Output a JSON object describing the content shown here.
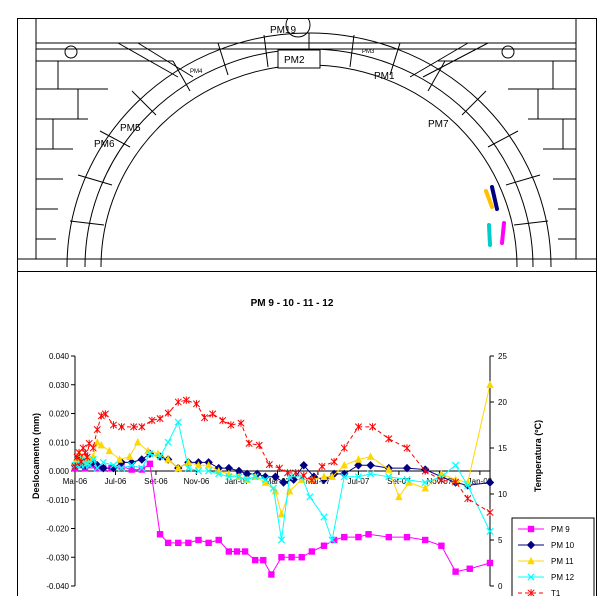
{
  "drawing": {
    "labels": [
      "PM19",
      "PM2",
      "PM1",
      "PM3",
      "PM4",
      "PM5",
      "PM6",
      "PM7"
    ]
  },
  "chart_data": {
    "type": "line",
    "title": "PM 9 - 10 - 11 - 12",
    "ylabel": "Deslocamento (mm)",
    "y2label": "Temperatura (ºC)",
    "ylim": [
      -0.04,
      0.04
    ],
    "y2lim": [
      0,
      25
    ],
    "yticks": [
      "0.040",
      "0.030",
      "0.020",
      "0.010",
      "0.000",
      "-0.010",
      "-0.020",
      "-0.030",
      "-0.040"
    ],
    "y2ticks": [
      "25",
      "20",
      "15",
      "10",
      "5",
      "0"
    ],
    "xlim": [
      0,
      20.5
    ],
    "xticks": [
      {
        "label": "Mai-06",
        "x": 0
      },
      {
        "label": "Jul-06",
        "x": 2
      },
      {
        "label": "Set-06",
        "x": 4
      },
      {
        "label": "Nov-06",
        "x": 6
      },
      {
        "label": "Jan-07",
        "x": 8
      },
      {
        "label": "Mar-07",
        "x": 10
      },
      {
        "label": "Mai-07",
        "x": 12
      },
      {
        "label": "Jul-07",
        "x": 14
      },
      {
        "label": "Set-07",
        "x": 16
      },
      {
        "label": "Nov-07",
        "x": 18
      },
      {
        "label": "Jan-08",
        "x": 20
      }
    ],
    "grid": false,
    "legend_position": "bottom-right",
    "series": [
      {
        "name": "PM 9",
        "axis": "left",
        "color": "#ff00ff",
        "marker": "square",
        "dash": "",
        "points": [
          [
            0.0,
            0.001
          ],
          [
            0.1,
            0.002
          ],
          [
            0.2,
            0.004
          ],
          [
            0.3,
            0.002
          ],
          [
            0.4,
            0.003
          ],
          [
            0.5,
            0.001
          ],
          [
            0.6,
            0.002
          ],
          [
            0.7,
            0.002
          ],
          [
            0.9,
            0.002
          ],
          [
            1.1,
            0.001
          ],
          [
            1.4,
            0.001
          ],
          [
            1.8,
            0.001
          ],
          [
            2.3,
            0.0015
          ],
          [
            2.8,
            0.0005
          ],
          [
            3.3,
            0.0005
          ],
          [
            3.7,
            0.0025
          ],
          [
            4.2,
            -0.022
          ],
          [
            4.6,
            -0.025
          ],
          [
            5.1,
            -0.025
          ],
          [
            5.6,
            -0.025
          ],
          [
            6.1,
            -0.024
          ],
          [
            6.6,
            -0.025
          ],
          [
            7.1,
            -0.024
          ],
          [
            7.6,
            -0.028
          ],
          [
            8.0,
            -0.028
          ],
          [
            8.4,
            -0.028
          ],
          [
            8.9,
            -0.031
          ],
          [
            9.3,
            -0.031
          ],
          [
            9.7,
            -0.036
          ],
          [
            10.2,
            -0.03
          ],
          [
            10.7,
            -0.03
          ],
          [
            11.2,
            -0.03
          ],
          [
            11.7,
            -0.028
          ],
          [
            12.3,
            -0.026
          ],
          [
            12.8,
            -0.024
          ],
          [
            13.3,
            -0.023
          ],
          [
            14.0,
            -0.023
          ],
          [
            14.5,
            -0.022
          ],
          [
            15.5,
            -0.023
          ],
          [
            16.4,
            -0.023
          ],
          [
            17.3,
            -0.024
          ],
          [
            18.1,
            -0.026
          ],
          [
            18.8,
            -0.035
          ],
          [
            19.5,
            -0.034
          ],
          [
            20.5,
            -0.032
          ]
        ]
      },
      {
        "name": "PM 10",
        "axis": "left",
        "color": "#000080",
        "marker": "diamond",
        "dash": "",
        "points": [
          [
            0.0,
            0.002
          ],
          [
            0.1,
            0.003
          ],
          [
            0.2,
            0.004
          ],
          [
            0.3,
            0.003
          ],
          [
            0.4,
            0.002
          ],
          [
            0.5,
            0.002
          ],
          [
            0.6,
            0.003
          ],
          [
            0.7,
            0.003
          ],
          [
            0.9,
            0.003
          ],
          [
            1.1,
            0.002
          ],
          [
            1.4,
            0.001
          ],
          [
            1.9,
            0.001
          ],
          [
            2.3,
            0.003
          ],
          [
            2.8,
            0.003
          ],
          [
            3.3,
            0.004
          ],
          [
            3.7,
            0.006
          ],
          [
            4.2,
            0.005
          ],
          [
            4.6,
            0.004
          ],
          [
            5.1,
            0.001
          ],
          [
            5.6,
            0.003
          ],
          [
            6.1,
            0.003
          ],
          [
            6.6,
            0.003
          ],
          [
            7.1,
            0.001
          ],
          [
            7.6,
            0.001
          ],
          [
            8.1,
            0.0
          ],
          [
            8.5,
            -0.001
          ],
          [
            9.0,
            -0.001
          ],
          [
            9.4,
            -0.002
          ],
          [
            9.9,
            -0.002
          ],
          [
            10.3,
            -0.004
          ],
          [
            10.8,
            -0.003
          ],
          [
            11.3,
            0.002
          ],
          [
            11.8,
            -0.002
          ],
          [
            12.3,
            -0.003
          ],
          [
            12.8,
            -0.001
          ],
          [
            13.3,
            -0.001
          ],
          [
            14.0,
            0.002
          ],
          [
            14.6,
            0.002
          ],
          [
            15.5,
            0.001
          ],
          [
            16.4,
            0.001
          ],
          [
            17.3,
            0.0005
          ],
          [
            18.1,
            -0.002
          ],
          [
            18.8,
            -0.004
          ],
          [
            19.4,
            -0.005
          ],
          [
            20.5,
            -0.004
          ]
        ]
      },
      {
        "name": "PM 11",
        "axis": "left",
        "color": "#ffd700",
        "marker": "triangle",
        "dash": "",
        "points": [
          [
            0.0,
            0.003
          ],
          [
            0.1,
            0.004
          ],
          [
            0.2,
            0.006
          ],
          [
            0.3,
            0.004
          ],
          [
            0.4,
            0.004
          ],
          [
            0.5,
            0.003
          ],
          [
            0.6,
            0.004
          ],
          [
            0.7,
            0.004
          ],
          [
            0.9,
            0.005
          ],
          [
            1.1,
            0.01
          ],
          [
            1.3,
            0.009
          ],
          [
            1.7,
            0.007
          ],
          [
            2.2,
            0.004
          ],
          [
            2.7,
            0.005
          ],
          [
            3.1,
            0.01
          ],
          [
            3.6,
            0.007
          ],
          [
            4.1,
            0.006
          ],
          [
            4.6,
            0.004
          ],
          [
            5.1,
            0.001
          ],
          [
            5.6,
            0.003
          ],
          [
            6.1,
            0.002
          ],
          [
            6.6,
            0.002
          ],
          [
            7.1,
            0.0
          ],
          [
            7.6,
            -0.001
          ],
          [
            8.1,
            -0.002
          ],
          [
            8.5,
            -0.003
          ],
          [
            8.9,
            -0.002
          ],
          [
            9.4,
            -0.004
          ],
          [
            9.9,
            -0.007
          ],
          [
            10.2,
            -0.015
          ],
          [
            10.6,
            -0.007
          ],
          [
            11.2,
            -0.003
          ],
          [
            11.7,
            -0.003
          ],
          [
            12.3,
            -0.002
          ],
          [
            12.7,
            -0.002
          ],
          [
            13.3,
            0.002
          ],
          [
            14.0,
            0.004
          ],
          [
            14.6,
            0.005
          ],
          [
            15.5,
            0.0005
          ],
          [
            16.0,
            -0.009
          ],
          [
            16.5,
            -0.004
          ],
          [
            17.3,
            -0.006
          ],
          [
            18.1,
            -0.001
          ],
          [
            18.8,
            -0.003
          ],
          [
            19.4,
            -0.004
          ],
          [
            20.5,
            0.03
          ]
        ]
      },
      {
        "name": "PM 12",
        "axis": "left",
        "color": "#00ffff",
        "marker": "x",
        "dash": "",
        "points": [
          [
            0.0,
            0.002
          ],
          [
            0.1,
            0.002
          ],
          [
            0.2,
            0.003
          ],
          [
            0.3,
            0.002
          ],
          [
            0.4,
            0.004
          ],
          [
            0.5,
            0.002
          ],
          [
            0.6,
            0.003
          ],
          [
            0.7,
            0.002
          ],
          [
            0.9,
            0.004
          ],
          [
            1.1,
            0.001
          ],
          [
            1.4,
            0.003
          ],
          [
            1.9,
            0.002
          ],
          [
            2.3,
            0.001
          ],
          [
            2.8,
            0.002
          ],
          [
            3.3,
            0.001
          ],
          [
            3.7,
            0.006
          ],
          [
            4.2,
            0.005
          ],
          [
            4.6,
            0.01
          ],
          [
            5.1,
            0.017
          ],
          [
            5.6,
            0.001
          ],
          [
            6.1,
            0.0
          ],
          [
            6.6,
            0.0
          ],
          [
            7.1,
            -0.001
          ],
          [
            7.6,
            -0.002
          ],
          [
            8.1,
            -0.002
          ],
          [
            8.5,
            -0.003
          ],
          [
            8.9,
            -0.002
          ],
          [
            9.4,
            -0.003
          ],
          [
            9.8,
            -0.006
          ],
          [
            10.2,
            -0.024
          ],
          [
            10.6,
            -0.002
          ],
          [
            11.2,
            -0.002
          ],
          [
            11.6,
            -0.009
          ],
          [
            12.3,
            -0.016
          ],
          [
            12.7,
            -0.024
          ],
          [
            13.3,
            -0.002
          ],
          [
            14.0,
            -0.002
          ],
          [
            14.6,
            -0.001
          ],
          [
            15.5,
            -0.002
          ],
          [
            16.4,
            -0.003
          ],
          [
            17.3,
            -0.004
          ],
          [
            18.1,
            -0.002
          ],
          [
            18.8,
            0.002
          ],
          [
            19.4,
            -0.005
          ],
          [
            20.5,
            -0.021
          ]
        ]
      },
      {
        "name": "T1",
        "axis": "right",
        "color": "#ff0000",
        "marker": "star",
        "dash": "4,3",
        "points": [
          [
            0.0,
            13.0
          ],
          [
            0.1,
            14.0
          ],
          [
            0.2,
            14.5
          ],
          [
            0.3,
            13.5
          ],
          [
            0.4,
            15.0
          ],
          [
            0.5,
            14.5
          ],
          [
            0.6,
            14.0
          ],
          [
            0.7,
            15.5
          ],
          [
            0.9,
            15.0
          ],
          [
            1.1,
            17.0
          ],
          [
            1.3,
            18.5
          ],
          [
            1.5,
            18.7
          ],
          [
            1.9,
            17.5
          ],
          [
            2.3,
            17.3
          ],
          [
            2.9,
            17.3
          ],
          [
            3.3,
            17.3
          ],
          [
            3.8,
            18.0
          ],
          [
            4.2,
            18.2
          ],
          [
            4.6,
            18.8
          ],
          [
            5.1,
            20.0
          ],
          [
            5.5,
            20.2
          ],
          [
            6.0,
            19.8
          ],
          [
            6.4,
            18.3
          ],
          [
            6.8,
            18.7
          ],
          [
            7.3,
            18.0
          ],
          [
            7.7,
            17.5
          ],
          [
            8.2,
            17.7
          ],
          [
            8.6,
            15.5
          ],
          [
            9.1,
            15.3
          ],
          [
            9.6,
            13.2
          ],
          [
            10.1,
            12.8
          ],
          [
            10.5,
            12.3
          ],
          [
            10.9,
            12.3
          ],
          [
            11.3,
            12.0
          ],
          [
            11.7,
            11.5
          ],
          [
            12.2,
            13.0
          ],
          [
            12.8,
            13.5
          ],
          [
            13.3,
            15.0
          ],
          [
            14.0,
            17.3
          ],
          [
            14.7,
            17.3
          ],
          [
            15.5,
            16.0
          ],
          [
            16.4,
            15.0
          ],
          [
            17.3,
            12.5
          ],
          [
            18.1,
            11.5
          ],
          [
            18.8,
            11.3
          ],
          [
            19.4,
            9.5
          ],
          [
            20.5,
            8.0
          ]
        ]
      }
    ]
  }
}
